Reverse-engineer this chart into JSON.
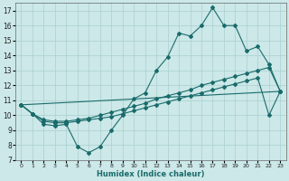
{
  "bg_color": "#cce8e8",
  "grid_color": "#aacfcf",
  "line_color": "#1a6b6b",
  "xlabel": "Humidex (Indice chaleur)",
  "xlim": [
    -0.5,
    23.5
  ],
  "ylim": [
    7,
    17.5
  ],
  "xticks": [
    0,
    1,
    2,
    3,
    4,
    5,
    6,
    7,
    8,
    9,
    10,
    11,
    12,
    13,
    14,
    15,
    16,
    17,
    18,
    19,
    20,
    21,
    22,
    23
  ],
  "yticks": [
    7,
    8,
    9,
    10,
    11,
    12,
    13,
    14,
    15,
    16,
    17
  ],
  "curve1_x": [
    0,
    1,
    2,
    3,
    4,
    5,
    6,
    7,
    8,
    9,
    10,
    11,
    12,
    13,
    14,
    15,
    16,
    17,
    18,
    19,
    20,
    21,
    22,
    23
  ],
  "curve1_y": [
    10.7,
    10.1,
    9.4,
    9.3,
    9.4,
    7.9,
    7.5,
    7.9,
    9.0,
    10.0,
    11.1,
    11.5,
    13.0,
    13.9,
    15.5,
    15.3,
    16.0,
    17.2,
    16.0,
    16.0,
    14.3,
    14.6,
    13.4,
    11.6
  ],
  "curve2_x": [
    0,
    1,
    2,
    3,
    4,
    5,
    6,
    7,
    8,
    9,
    10,
    11,
    12,
    13,
    14,
    15,
    16,
    17,
    18,
    19,
    20,
    21,
    22,
    23
  ],
  "curve2_y": [
    10.7,
    10.1,
    9.7,
    9.6,
    9.6,
    9.7,
    9.8,
    10.0,
    10.2,
    10.4,
    10.6,
    10.8,
    11.1,
    11.3,
    11.5,
    11.7,
    12.0,
    12.2,
    12.4,
    12.6,
    12.8,
    13.0,
    13.2,
    11.6
  ],
  "curve3_x": [
    0,
    1,
    2,
    3,
    4,
    5,
    6,
    7,
    8,
    9,
    10,
    11,
    12,
    13,
    14,
    15,
    16,
    17,
    18,
    19,
    20,
    21,
    22,
    23
  ],
  "curve3_y": [
    10.7,
    10.1,
    9.6,
    9.5,
    9.5,
    9.6,
    9.7,
    9.8,
    9.9,
    10.1,
    10.3,
    10.5,
    10.7,
    10.9,
    11.1,
    11.3,
    11.5,
    11.7,
    11.9,
    12.1,
    12.3,
    12.5,
    10.0,
    11.6
  ],
  "curve4_x": [
    0,
    23
  ],
  "curve4_y": [
    10.7,
    11.6
  ],
  "markersize": 2.0,
  "linewidth": 0.8
}
